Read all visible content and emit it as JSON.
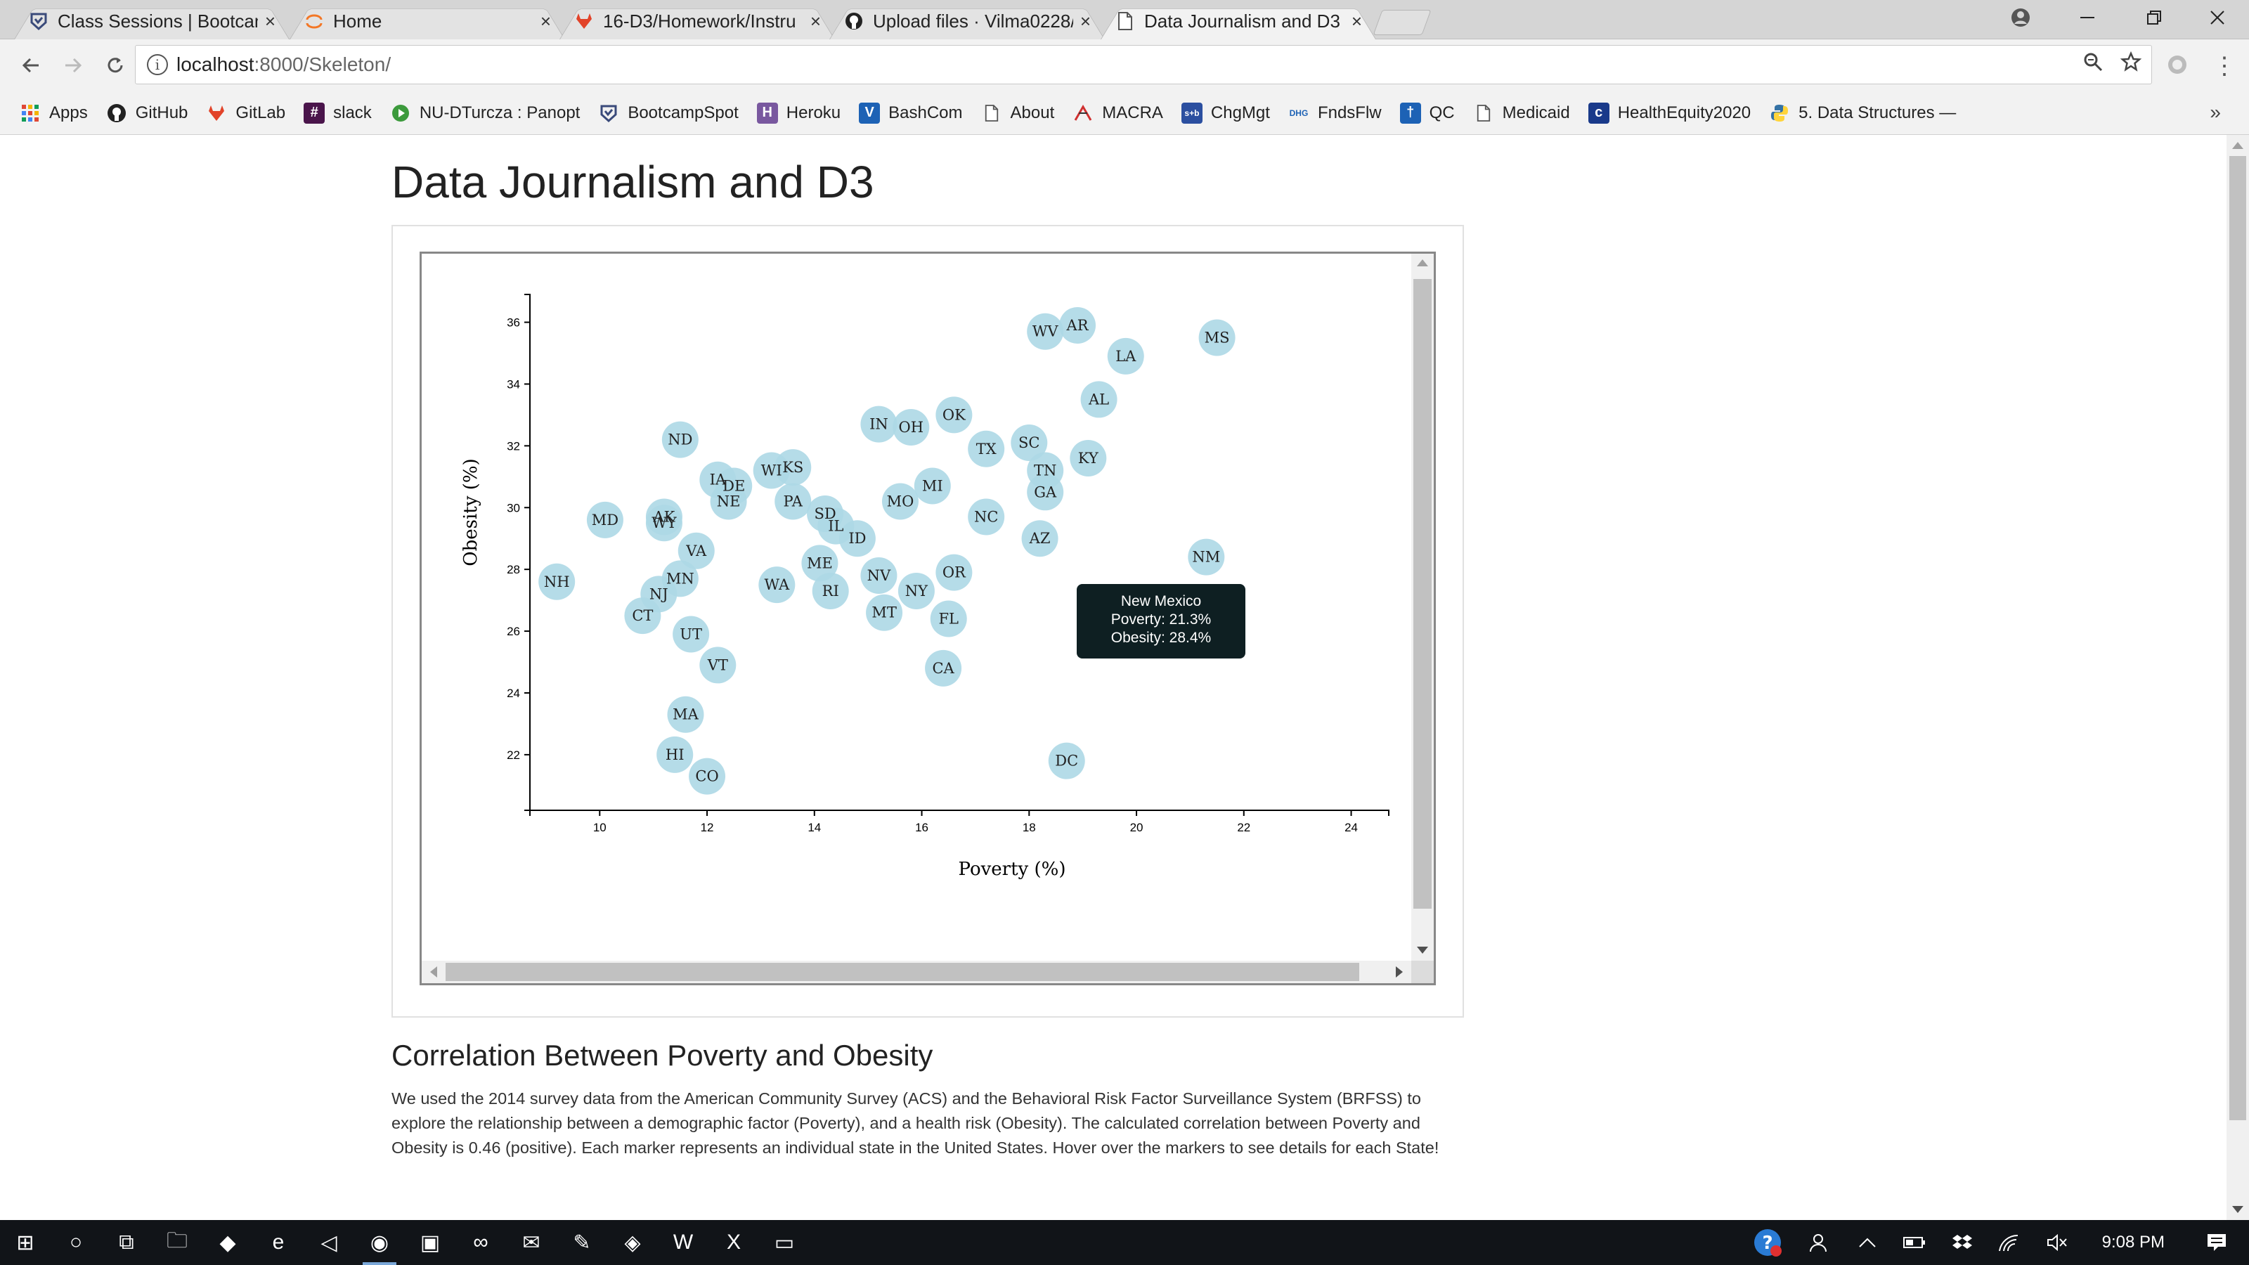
{
  "browser": {
    "tabs": [
      {
        "title": "Class Sessions | Bootcamp",
        "icon": "bootcampspot-icon"
      },
      {
        "title": "Home",
        "icon": "jupyter-icon"
      },
      {
        "title": "16-D3/Homework/Instru",
        "icon": "gitlab-icon"
      },
      {
        "title": "Upload files · Vilma0228/",
        "icon": "github-icon"
      },
      {
        "title": "Data Journalism and D3",
        "icon": "page-icon",
        "active": true
      }
    ],
    "close_glyph": "×",
    "url_host": "localhost",
    "url_path": ":8000/Skeleton/",
    "bookmarks": [
      {
        "label": "Apps",
        "icon": "apps-grid-icon",
        "color": "#e04836"
      },
      {
        "label": "GitHub",
        "icon": "github-icon",
        "color": "#222222"
      },
      {
        "label": "GitLab",
        "icon": "gitlab-icon",
        "color": "#e24329"
      },
      {
        "label": "slack",
        "icon": "slack-icon",
        "color": "#4a154b"
      },
      {
        "label": "NU-DTurcza : Panopt",
        "icon": "panopto-icon",
        "color": "#3c9a3c"
      },
      {
        "label": "BootcampSpot",
        "icon": "bootcampspot-icon",
        "color": "#3a4a7a"
      },
      {
        "label": "Heroku",
        "icon": "heroku-icon",
        "color": "#79589f"
      },
      {
        "label": "BashCom",
        "icon": "bashcom-icon",
        "color": "#1d62b5"
      },
      {
        "label": "About",
        "icon": "page-icon",
        "color": "#ffffff"
      },
      {
        "label": "MACRA",
        "icon": "macra-icon",
        "color": "#d03030"
      },
      {
        "label": "ChgMgt",
        "icon": "chgmgt-icon",
        "color": "#2b4fa0"
      },
      {
        "label": "FndsFlw",
        "icon": "fndsflw-icon",
        "color": "#ffffff"
      },
      {
        "label": "QC",
        "icon": "qc-icon",
        "color": "#1d62b5"
      },
      {
        "label": "Medicaid",
        "icon": "page-icon",
        "color": "#ffffff"
      },
      {
        "label": "HealthEquity2020",
        "icon": "healthequity-icon",
        "color": "#1a3a8a"
      },
      {
        "label": "5. Data Structures —",
        "icon": "python-icon",
        "color": "#3572a5"
      }
    ],
    "more_glyph": "»"
  },
  "page": {
    "title": "Data Journalism and D3",
    "section_heading": "Correlation Between Poverty and Obesity",
    "section_text": "We used the 2014 survey data from the American Community Survey (ACS) and the Behavioral Risk Factor Surveillance System (BRFSS) to explore the relationship between a demographic factor (Poverty), and a health risk (Obesity). The calculated correlation between Poverty and Obesity is 0.46 (positive). Each marker represents an individual state in the United States. Hover over the markers to see details for each State!",
    "tooltip": {
      "line1": "New Mexico",
      "line2": "Poverty: 21.3%",
      "line3": "Obesity: 28.4%"
    }
  },
  "chart_data": {
    "type": "scatter",
    "xlabel": "Poverty (%)",
    "ylabel": "Obesity (%)",
    "xlim": [
      8.7,
      24.7
    ],
    "ylim": [
      20.2,
      36.9
    ],
    "xticks": [
      10,
      12,
      14,
      16,
      18,
      20,
      22,
      24
    ],
    "yticks": [
      22,
      24,
      26,
      28,
      30,
      32,
      34,
      36
    ],
    "marker_color": "#add8e6",
    "points": [
      {
        "abbr": "WV",
        "x": 18.3,
        "y": 35.7
      },
      {
        "abbr": "AR",
        "x": 18.9,
        "y": 35.9
      },
      {
        "abbr": "MS",
        "x": 21.5,
        "y": 35.5
      },
      {
        "abbr": "LA",
        "x": 19.8,
        "y": 34.9
      },
      {
        "abbr": "AL",
        "x": 19.3,
        "y": 33.5
      },
      {
        "abbr": "OK",
        "x": 16.6,
        "y": 33.0
      },
      {
        "abbr": "IN",
        "x": 15.2,
        "y": 32.7
      },
      {
        "abbr": "OH",
        "x": 15.8,
        "y": 32.6
      },
      {
        "abbr": "ND",
        "x": 11.5,
        "y": 32.2
      },
      {
        "abbr": "TX",
        "x": 17.2,
        "y": 31.9
      },
      {
        "abbr": "SC",
        "x": 18.0,
        "y": 32.1
      },
      {
        "abbr": "KY",
        "x": 19.1,
        "y": 31.6
      },
      {
        "abbr": "TN",
        "x": 18.3,
        "y": 31.2
      },
      {
        "abbr": "GA",
        "x": 18.3,
        "y": 30.5
      },
      {
        "abbr": "WI",
        "x": 13.2,
        "y": 31.2
      },
      {
        "abbr": "KS",
        "x": 13.6,
        "y": 31.3
      },
      {
        "abbr": "IA",
        "x": 12.2,
        "y": 30.9
      },
      {
        "abbr": "DE",
        "x": 12.5,
        "y": 30.7
      },
      {
        "abbr": "NE",
        "x": 12.4,
        "y": 30.2
      },
      {
        "abbr": "MI",
        "x": 16.2,
        "y": 30.7
      },
      {
        "abbr": "PA",
        "x": 13.6,
        "y": 30.2
      },
      {
        "abbr": "MO",
        "x": 15.6,
        "y": 30.2
      },
      {
        "abbr": "SD",
        "x": 14.2,
        "y": 29.8
      },
      {
        "abbr": "NC",
        "x": 17.2,
        "y": 29.7
      },
      {
        "abbr": "IL",
        "x": 14.4,
        "y": 29.4
      },
      {
        "abbr": "MD",
        "x": 10.1,
        "y": 29.6
      },
      {
        "abbr": "AK",
        "x": 11.2,
        "y": 29.7
      },
      {
        "abbr": "WY",
        "x": 11.2,
        "y": 29.5
      },
      {
        "abbr": "ID",
        "x": 14.8,
        "y": 29.0
      },
      {
        "abbr": "AZ",
        "x": 18.2,
        "y": 29.0
      },
      {
        "abbr": "NM",
        "x": 21.3,
        "y": 28.4
      },
      {
        "abbr": "VA",
        "x": 11.8,
        "y": 28.6
      },
      {
        "abbr": "ME",
        "x": 14.1,
        "y": 28.2
      },
      {
        "abbr": "OR",
        "x": 16.6,
        "y": 27.9
      },
      {
        "abbr": "NV",
        "x": 15.2,
        "y": 27.8
      },
      {
        "abbr": "MN",
        "x": 11.5,
        "y": 27.7
      },
      {
        "abbr": "NH",
        "x": 9.2,
        "y": 27.6
      },
      {
        "abbr": "WA",
        "x": 13.3,
        "y": 27.5
      },
      {
        "abbr": "RI",
        "x": 14.3,
        "y": 27.3
      },
      {
        "abbr": "NY",
        "x": 15.9,
        "y": 27.3
      },
      {
        "abbr": "NJ",
        "x": 11.1,
        "y": 27.2
      },
      {
        "abbr": "MT",
        "x": 15.3,
        "y": 26.6
      },
      {
        "abbr": "CT",
        "x": 10.8,
        "y": 26.5
      },
      {
        "abbr": "FL",
        "x": 16.5,
        "y": 26.4
      },
      {
        "abbr": "UT",
        "x": 11.7,
        "y": 25.9
      },
      {
        "abbr": "VT",
        "x": 12.2,
        "y": 24.9
      },
      {
        "abbr": "CA",
        "x": 16.4,
        "y": 24.8
      },
      {
        "abbr": "MA",
        "x": 11.6,
        "y": 23.3
      },
      {
        "abbr": "HI",
        "x": 11.4,
        "y": 22.0
      },
      {
        "abbr": "DC",
        "x": 18.7,
        "y": 21.8
      },
      {
        "abbr": "CO",
        "x": 12.0,
        "y": 21.3
      }
    ]
  },
  "taskbar": {
    "clock": "9:08 PM",
    "apps": [
      {
        "name": "windows-start-icon",
        "glyph": "⊞"
      },
      {
        "name": "cortana-search-icon",
        "glyph": "○"
      },
      {
        "name": "task-view-icon",
        "glyph": "⧉"
      },
      {
        "name": "file-explorer-icon",
        "glyph": "🗀"
      },
      {
        "name": "dropbox-icon",
        "glyph": "◆"
      },
      {
        "name": "edge-icon",
        "glyph": "e"
      },
      {
        "name": "vscode-icon",
        "glyph": "◁"
      },
      {
        "name": "chrome-icon",
        "glyph": "◉",
        "active": true
      },
      {
        "name": "store-icon",
        "glyph": "▣"
      },
      {
        "name": "infinity-icon",
        "glyph": "∞"
      },
      {
        "name": "mail-icon",
        "glyph": "✉"
      },
      {
        "name": "paint-icon",
        "glyph": "✎"
      },
      {
        "name": "bootcamp-app-icon",
        "glyph": "◈"
      },
      {
        "name": "word-icon",
        "glyph": "W"
      },
      {
        "name": "excel-icon",
        "glyph": "X"
      },
      {
        "name": "terminal-icon",
        "glyph": "▭"
      }
    ]
  }
}
